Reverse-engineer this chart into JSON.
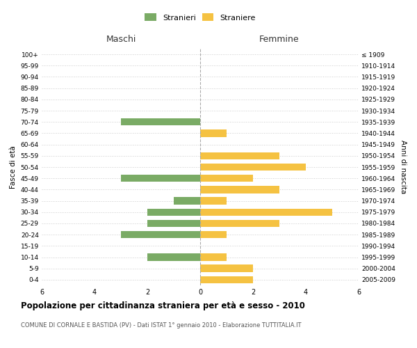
{
  "age_groups": [
    "0-4",
    "5-9",
    "10-14",
    "15-19",
    "20-24",
    "25-29",
    "30-34",
    "35-39",
    "40-44",
    "45-49",
    "50-54",
    "55-59",
    "60-64",
    "65-69",
    "70-74",
    "75-79",
    "80-84",
    "85-89",
    "90-94",
    "95-99",
    "100+"
  ],
  "birth_years": [
    "2005-2009",
    "2000-2004",
    "1995-1999",
    "1990-1994",
    "1985-1989",
    "1980-1984",
    "1975-1979",
    "1970-1974",
    "1965-1969",
    "1960-1964",
    "1955-1959",
    "1950-1954",
    "1945-1949",
    "1940-1944",
    "1935-1939",
    "1930-1934",
    "1925-1929",
    "1920-1924",
    "1915-1919",
    "1910-1914",
    "≤ 1909"
  ],
  "males": [
    0,
    0,
    2,
    0,
    3,
    2,
    2,
    1,
    0,
    3,
    0,
    0,
    0,
    0,
    3,
    0,
    0,
    0,
    0,
    0,
    0
  ],
  "females": [
    2,
    2,
    1,
    0,
    1,
    3,
    5,
    1,
    3,
    2,
    4,
    3,
    0,
    1,
    0,
    0,
    0,
    0,
    0,
    0,
    0
  ],
  "male_color": "#7aab65",
  "female_color": "#f5c242",
  "title": "Popolazione per cittadinanza straniera per età e sesso - 2010",
  "subtitle": "COMUNE DI CORNALE E BASTIDA (PV) - Dati ISTAT 1° gennaio 2010 - Elaborazione TUTTITALIA.IT",
  "xlabel_left": "Maschi",
  "xlabel_right": "Femmine",
  "ylabel_left": "Fasce di età",
  "ylabel_right": "Anni di nascita",
  "legend_male": "Stranieri",
  "legend_female": "Straniere",
  "xlim": 6,
  "background_color": "#ffffff",
  "grid_color": "#cccccc"
}
